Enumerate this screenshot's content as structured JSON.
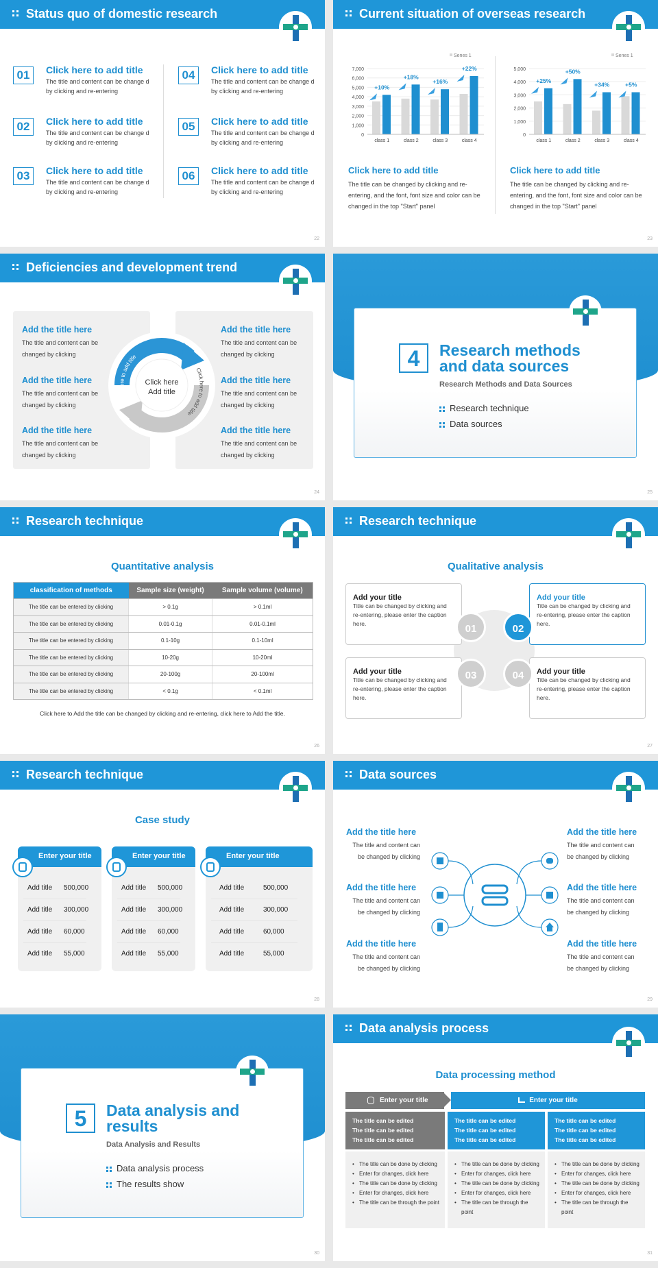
{
  "colors": {
    "accent": "#1f96d8",
    "grey": "#7a7a7a",
    "green": "#1ea58a"
  },
  "slides": [
    {
      "title": "Status quo of domestic research",
      "page": "22",
      "items": [
        {
          "num": "01",
          "title": "Click here to add title",
          "text": "The title and content can be change d by clicking and re-entering"
        },
        {
          "num": "02",
          "title": "Click here to add title",
          "text": "The title and content can be change d by clicking and re-entering"
        },
        {
          "num": "03",
          "title": "Click here to add title",
          "text": "The title and content can be change d by clicking and re-entering"
        },
        {
          "num": "04",
          "title": "Click here to add title",
          "text": "The title and content can be change d by clicking and re-entering"
        },
        {
          "num": "05",
          "title": "Click here to add title",
          "text": "The title and content can be change d by clicking and re-entering"
        },
        {
          "num": "06",
          "title": "Click here to add title",
          "text": "The title and content can be change d by clicking and re-entering"
        }
      ]
    },
    {
      "title": "Current situation of overseas research",
      "page": "23",
      "blocks": [
        {
          "title": "Click here to add title",
          "text": "The title can be changed by clicking and re-entering, and the font, font size and color can be changed in the top \"Start\" panel"
        },
        {
          "title": "Click here to add title",
          "text": "The title can be changed by clicking and re-entering, and the font, font size and color can be changed in the top \"Start\" panel"
        }
      ]
    },
    {
      "title": "Deficiencies and development trend",
      "page": "24",
      "center": "Click here Add title",
      "ring_left": "Click here to add title",
      "ring_right": "Click here to add title",
      "items": [
        {
          "title": "Add the title here",
          "text": "The title and content can be changed by clicking"
        },
        {
          "title": "Add the title here",
          "text": "The title and content can be changed by clicking"
        },
        {
          "title": "Add the title here",
          "text": "The title and content can be changed by clicking"
        },
        {
          "title": "Add the title here",
          "text": "The title and content can be changed by clicking"
        },
        {
          "title": "Add the title here",
          "text": "The title and content can be changed by clicking"
        },
        {
          "title": "Add the title here",
          "text": "The title and content can be changed by clicking"
        }
      ]
    },
    {
      "number": "4",
      "title": "Research methods and data sources",
      "subtitle": "Research Methods and Data Sources",
      "items": [
        "Research technique",
        "Data sources"
      ],
      "page": "25"
    },
    {
      "title": "Research technique",
      "page": "26",
      "heading": "Quantitative analysis",
      "table": {
        "headers": [
          "classification of methods",
          "Sample size (weight)",
          "Sample volume (volume)"
        ],
        "rows": [
          [
            "The title can be entered by clicking",
            "> 0.1g",
            "> 0.1ml"
          ],
          [
            "The title can be entered by clicking",
            "0.01-0.1g",
            "0.01-0.1ml"
          ],
          [
            "The title can be entered by clicking",
            "0.1-10g",
            "0.1-10ml"
          ],
          [
            "The title can be entered by clicking",
            "10-20g",
            "10-20ml"
          ],
          [
            "The title can be entered by clicking",
            "20-100g",
            "20-100ml"
          ],
          [
            "The title can be entered by clicking",
            "< 0.1g",
            "< 0.1ml"
          ]
        ]
      },
      "caption": "Click here to Add the title can be changed by clicking and re-entering, click here to Add the title."
    },
    {
      "title": "Research technique",
      "page": "27",
      "heading": "Qualitative analysis",
      "boxes": [
        {
          "num": "01",
          "title": "Add your title",
          "text": "Title can be changed by clicking and re-entering, please enter the caption here."
        },
        {
          "num": "02",
          "title": "Add your title",
          "text": "Title can be changed by clicking and re-entering, please enter the caption here."
        },
        {
          "num": "03",
          "title": "Add your title",
          "text": "Title can be changed by clicking and re-entering, please enter the caption here."
        },
        {
          "num": "04",
          "title": "Add your title",
          "text": "Title can be changed by clicking and re-entering, please enter the caption here."
        }
      ]
    },
    {
      "title": "Research technique",
      "page": "28",
      "heading": "Case study",
      "cards": [
        {
          "title": "Enter your title",
          "icon": "phone-user-icon",
          "rows": [
            [
              "Add title",
              "500,000"
            ],
            [
              "Add title",
              "300,000"
            ],
            [
              "Add title",
              "60,000"
            ],
            [
              "Add title",
              "55,000"
            ]
          ]
        },
        {
          "title": "Enter your title",
          "icon": "scan-icon",
          "rows": [
            [
              "Add title",
              "500,000"
            ],
            [
              "Add title",
              "300,000"
            ],
            [
              "Add title",
              "60,000"
            ],
            [
              "Add title",
              "55,000"
            ]
          ]
        },
        {
          "title": "Enter your title",
          "icon": "chat-icon",
          "rows": [
            [
              "Add title",
              "500,000"
            ],
            [
              "Add title",
              "300,000"
            ],
            [
              "Add title",
              "60,000"
            ],
            [
              "Add title",
              "55,000"
            ]
          ]
        }
      ]
    },
    {
      "title": "Data sources",
      "page": "29",
      "items": [
        {
          "title": "Add the title here",
          "text": "The title and content can be changed by clicking"
        },
        {
          "title": "Add the title here",
          "text": "The title and content can be changed by clicking"
        },
        {
          "title": "Add the title here",
          "text": "The title and content can be changed by clicking"
        },
        {
          "title": "Add the title here",
          "text": "The title and content can be changed by clicking"
        },
        {
          "title": "Add the title here",
          "text": "The title and content can be changed by clicking"
        },
        {
          "title": "Add the title here",
          "text": "The title and content can be changed by clicking"
        }
      ]
    },
    {
      "number": "5",
      "title": "Data analysis and results",
      "subtitle": "Data Analysis and Results",
      "items": [
        "Data analysis process",
        "The results show"
      ],
      "page": "30"
    },
    {
      "title": "Data analysis process",
      "page": "31",
      "heading": "Data processing method",
      "header_left": "Enter your title",
      "header_right": "Enter your title",
      "cols": [
        {
          "top": [
            "The title can be edited",
            "The title can be edited",
            "The title can be edited"
          ],
          "bottom": [
            "The title can be done by clicking",
            "Enter for changes, click here",
            "The title can be done by clicking",
            "Enter for changes, click here",
            "The title can be through the point"
          ]
        },
        {
          "top": [
            "The title can be edited",
            "The title can be edited",
            "The title can be edited"
          ],
          "bottom": [
            "The title can be done by clicking",
            "Enter for changes, click here",
            "The title can be done by clicking",
            "Enter for changes, click here",
            "The title can be through the point"
          ]
        },
        {
          "top": [
            "The title can be edited",
            "The title can be edited",
            "The title can be edited"
          ],
          "bottom": [
            "The title can be done by clicking",
            "Enter for changes, click here",
            "The title can be done by clicking",
            "Enter for changes, click here",
            "The title can be through the point"
          ]
        }
      ]
    }
  ],
  "chart_data": [
    {
      "type": "bar",
      "categories": [
        "class 1",
        "class 2",
        "class 3",
        "class 4"
      ],
      "ylim": [
        0,
        7000
      ],
      "yticks": [
        "0",
        "1,000",
        "2,000",
        "3,000",
        "4,000",
        "5,000",
        "6,000",
        "7,000"
      ],
      "legend": "top-right",
      "series": [
        {
          "name": "Series 1",
          "color": "#d9d9d9",
          "values": [
            3500,
            3800,
            3700,
            4300
          ]
        },
        {
          "color": "#1f8fd0",
          "values": [
            4200,
            5300,
            4800,
            6200
          ]
        }
      ],
      "annotations": [
        "+10%",
        "+18%",
        "+16%",
        "+22%"
      ]
    },
    {
      "type": "bar",
      "categories": [
        "class 1",
        "class 2",
        "class 3",
        "class 4"
      ],
      "ylim": [
        0,
        5000
      ],
      "yticks": [
        "0",
        "1,000",
        "2,000",
        "3,000",
        "4,000",
        "5,000"
      ],
      "legend": "top-right",
      "series": [
        {
          "name": "Series 1",
          "color": "#d9d9d9",
          "values": [
            2500,
            2300,
            1800,
            2900
          ]
        },
        {
          "color": "#1f8fd0",
          "values": [
            3500,
            4200,
            3200,
            3200
          ]
        }
      ],
      "annotations": [
        "+25%",
        "+50%",
        "+34%",
        "+5%"
      ]
    }
  ]
}
